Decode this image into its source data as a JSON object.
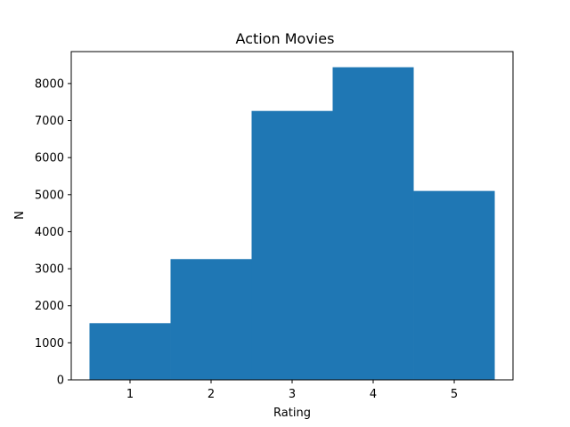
{
  "chart_data": {
    "type": "bar",
    "title": "Action Movies",
    "xlabel": "Rating",
    "ylabel": "N",
    "categories": [
      1,
      2,
      3,
      4,
      5
    ],
    "values": [
      1530,
      3260,
      7260,
      8440,
      5100
    ],
    "bar_width": 1.0,
    "xlim": [
      0.275,
      5.725
    ],
    "ylim": [
      0,
      8862
    ],
    "xticks": [
      1,
      2,
      3,
      4,
      5
    ],
    "yticks": [
      0,
      1000,
      2000,
      3000,
      4000,
      5000,
      6000,
      7000,
      8000
    ],
    "color": "#1f77b4",
    "grid": false
  }
}
